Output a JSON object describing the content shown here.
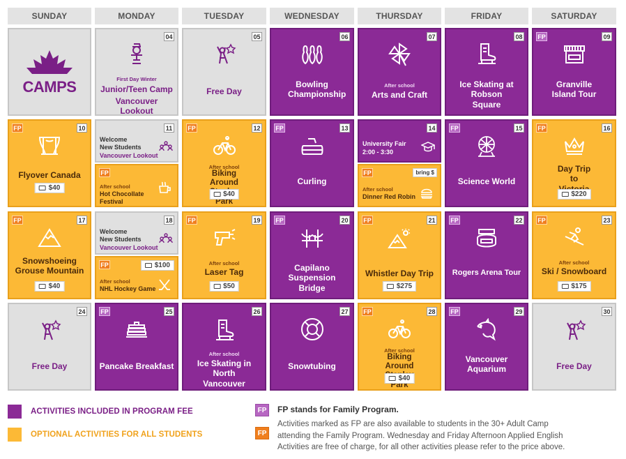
{
  "days": [
    "SUNDAY",
    "MONDAY",
    "TUESDAY",
    "WEDNESDAY",
    "THURSDAY",
    "FRIDAY",
    "SATURDAY"
  ],
  "camps_logo_text": "CAMPS",
  "fp_label": "FP",
  "cells": {
    "d04": {
      "num": "04",
      "small": "First Day Winter",
      "title": "Junior/Teen Camp",
      "title2": "Vancouver Lookout",
      "icon": "winter-person-icon"
    },
    "d05": {
      "num": "05",
      "title": "Free Day",
      "icon": "celebrate-person-icon"
    },
    "d06": {
      "num": "06",
      "title": "Bowling Championship",
      "icon": "bowling-pins-icon"
    },
    "d07": {
      "num": "07",
      "small": "After school",
      "title": "Arts and Craft",
      "icon": "pinwheel-icon"
    },
    "d08": {
      "num": "08",
      "title": "Ice Skating at Robson Square",
      "icon": "ice-skate-icon"
    },
    "d09": {
      "num": "09",
      "title": "Granville Island Tour",
      "icon": "market-stall-icon"
    },
    "d10": {
      "num": "10",
      "title": "Flyover Canada",
      "price": "$40",
      "icon": "theatre-stage-icon"
    },
    "d11": {
      "num": "11",
      "top_l1": "Welcome",
      "top_l2": "New Students",
      "top_l3": "Vancouver Lookout",
      "small": "After school",
      "bot_l1": "Hot Chocollate",
      "bot_l2": "Festival",
      "icon": "group-icon",
      "icon2": "hot-chocolate-icon"
    },
    "d12": {
      "num": "12",
      "small": "After school",
      "title": "Biking Around Stanley Park",
      "price": "$40",
      "icon": "bicycle-icon"
    },
    "d13": {
      "num": "13",
      "title": "Curling",
      "icon": "curling-stone-icon"
    },
    "d14": {
      "num": "14",
      "top_l1": "University Fair",
      "top_l2": "2:00 - 3:30",
      "bring": "bring $",
      "small": "After school",
      "bot_l1": "Dinner Red Robin",
      "icon": "graduation-cap-icon",
      "icon2": "burger-icon"
    },
    "d15": {
      "num": "15",
      "title": "Science World",
      "icon": "geodesic-dome-icon"
    },
    "d16": {
      "num": "16",
      "title": "Day Trip to Victoria",
      "price": "$220",
      "icon": "crown-icon"
    },
    "d17": {
      "num": "17",
      "title": "Snowshoeing Grouse Mountain",
      "price": "$40",
      "icon": "mountain-icon"
    },
    "d18": {
      "num": "18",
      "top_l1": "Welcome",
      "top_l2": "New Students",
      "top_l3": "Vancouver Lookout",
      "price": "$100",
      "small": "After school",
      "bot_l1": "NHL Hockey Game",
      "icon": "group-icon",
      "icon2": "hockey-sticks-icon"
    },
    "d19": {
      "num": "19",
      "small": "After school",
      "title": "Laser Tag",
      "price": "$50",
      "icon": "laser-gun-icon"
    },
    "d20": {
      "num": "20",
      "title": "Capilano Suspension Bridge",
      "icon": "bridge-icon"
    },
    "d21": {
      "num": "21",
      "title": "Whistler Day Trip",
      "price": "$275",
      "icon": "mountain-sun-icon"
    },
    "d22": {
      "num": "22",
      "title": "Rogers Arena Tour",
      "icon": "arena-icon"
    },
    "d23": {
      "num": "23",
      "small": "After school",
      "title": "Ski / Snowboard",
      "price": "$175",
      "icon": "skier-icon"
    },
    "d24": {
      "num": "24",
      "title": "Free Day",
      "icon": "celebrate-person-icon"
    },
    "d25": {
      "num": "25",
      "title": "Pancake Breakfast",
      "icon": "pancake-icon"
    },
    "d26": {
      "num": "26",
      "small": "After school",
      "title": "Ice Skating in North Vancouver",
      "icon": "ice-skate-icon"
    },
    "d27": {
      "num": "27",
      "title": "Snowtubing",
      "icon": "lifebuoy-icon"
    },
    "d28": {
      "num": "28",
      "small": "After school",
      "title": "Biking Around Stanley Park",
      "price": "$40",
      "icon": "bicycle-icon"
    },
    "d29": {
      "num": "29",
      "title": "Vancouver Aquarium",
      "icon": "dolphin-icon"
    },
    "d30": {
      "num": "30",
      "title": "Free Day",
      "icon": "celebrate-person-icon"
    }
  },
  "legend": {
    "purple_label": "ACTIVITIES INCLUDED IN PROGRAM FEE",
    "orange_label": "OPTIONAL ACTIVITIES FOR ALL STUDENTS",
    "fp_note_title": "FP stands for Family Program.",
    "fp_note_body": "Activities marked as FP are also available to students in the 30+ Adult Camp attending the Family Program. Wednesday and Friday Afternoon Applied English Activities are free of charge, for all other activities please refer to the price above."
  },
  "colors": {
    "purple": "#8b2a96",
    "orange": "#fcb936",
    "gray": "#e0e0e0",
    "fp_orange": "#f07f1e"
  }
}
